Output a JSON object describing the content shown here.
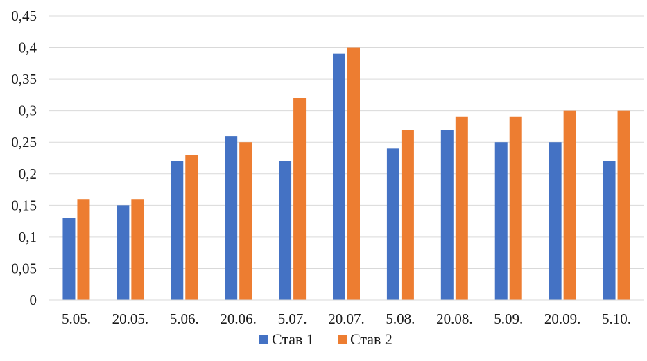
{
  "chart_data": {
    "type": "bar",
    "title": "",
    "xlabel": "",
    "ylabel": "",
    "categories": [
      "5.05.",
      "20.05.",
      "5.06.",
      "20.06.",
      "5.07.",
      "20.07.",
      "5.08.",
      "20.08.",
      "5.09.",
      "20.09.",
      "5.10."
    ],
    "series": [
      {
        "name": "Став 1",
        "color": "#4472c4",
        "values": [
          0.13,
          0.15,
          0.22,
          0.26,
          0.22,
          0.39,
          0.24,
          0.27,
          0.25,
          0.25,
          0.22
        ]
      },
      {
        "name": "Став 2",
        "color": "#ed7d31",
        "values": [
          0.16,
          0.16,
          0.23,
          0.25,
          0.32,
          0.4,
          0.27,
          0.29,
          0.29,
          0.3,
          0.3
        ]
      }
    ],
    "ylim": [
      0,
      0.45
    ],
    "yticks": [
      "0",
      "0,05",
      "0,1",
      "0,15",
      "0,2",
      "0,25",
      "0,3",
      "0,35",
      "0,4",
      "0,45"
    ],
    "grid": true,
    "gridColor": "#d9d9d9",
    "legendPosition": "bottom"
  }
}
